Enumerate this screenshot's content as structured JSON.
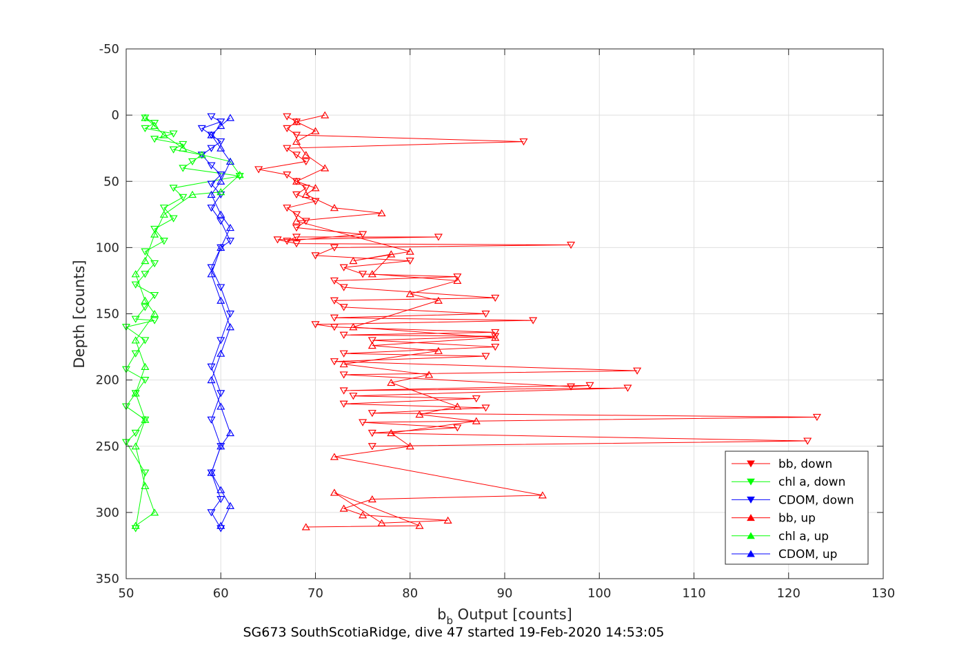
{
  "chart_data": {
    "type": "line",
    "caption": "SG673 SouthScotiaRidge, dive 47 started 19-Feb-2020 14:53:05",
    "xlabel_main": "b",
    "xlabel_sub": "b",
    "xlabel_rest": " Output [counts]",
    "ylabel": "Depth [counts]",
    "xlim": [
      50,
      130
    ],
    "ylim": [
      -50,
      350
    ],
    "y_reversed": true,
    "grid": true,
    "legend_position": "bottom-right",
    "xticks": [
      50,
      60,
      70,
      80,
      90,
      100,
      110,
      120,
      130
    ],
    "yticks": [
      -50,
      0,
      50,
      100,
      150,
      200,
      250,
      300,
      350
    ],
    "series": [
      {
        "name": "bb, down",
        "color": "#ff0000",
        "marker": "triangle-down",
        "x": [
          67,
          68,
          67,
          68,
          92,
          67,
          68,
          69,
          64,
          67,
          68,
          69,
          68,
          70,
          67,
          68,
          69,
          68,
          75,
          67,
          68,
          83,
          66,
          68,
          97,
          72,
          70,
          80,
          73,
          75,
          85,
          72,
          73,
          89,
          72,
          73,
          88,
          72,
          93,
          70,
          72,
          89,
          73,
          89,
          76,
          89,
          73,
          88,
          72,
          104,
          73,
          97,
          99,
          73,
          103,
          74,
          87,
          73,
          88,
          76,
          123,
          75,
          85,
          76,
          122,
          76
        ],
        "y": [
          1,
          5,
          10,
          15,
          20,
          25,
          30,
          35,
          41,
          45,
          50,
          55,
          60,
          65,
          70,
          75,
          80,
          85,
          90,
          95,
          92,
          92,
          94,
          97,
          98,
          100,
          106,
          110,
          115,
          120,
          122,
          125,
          130,
          138,
          140,
          145,
          150,
          153,
          155,
          158,
          160,
          164,
          166,
          167,
          170,
          175,
          180,
          182,
          186,
          193,
          196,
          205,
          204,
          208,
          206,
          212,
          214,
          218,
          221,
          225,
          228,
          232,
          236,
          240,
          246,
          250
        ]
      },
      {
        "name": "chl a, down",
        "color": "#00ff00",
        "marker": "triangle-down",
        "x": [
          52,
          53,
          52,
          55,
          53,
          56,
          55,
          58,
          57,
          56,
          62,
          55,
          56,
          54,
          55,
          53,
          54,
          52,
          53,
          52,
          51,
          53,
          52,
          51,
          53,
          50,
          52,
          51,
          50,
          52,
          51,
          50,
          52,
          51,
          50,
          52,
          51
        ],
        "y": [
          2,
          6,
          10,
          14,
          18,
          22,
          26,
          30,
          35,
          40,
          46,
          55,
          62,
          70,
          78,
          86,
          95,
          103,
          112,
          120,
          128,
          136,
          145,
          154,
          155,
          160,
          170,
          180,
          192,
          200,
          210,
          220,
          230,
          240,
          247,
          270,
          312
        ]
      },
      {
        "name": "CDOM, down",
        "color": "#0000ff",
        "marker": "triangle-down",
        "x": [
          59,
          60,
          58,
          59,
          60,
          59,
          58,
          59,
          60,
          59,
          60,
          59,
          60,
          61,
          60,
          59,
          60,
          61,
          60,
          59,
          60,
          59,
          60,
          59,
          60,
          59,
          60
        ],
        "y": [
          1,
          5,
          10,
          15,
          20,
          25,
          30,
          38,
          45,
          52,
          60,
          70,
          80,
          95,
          100,
          115,
          130,
          150,
          170,
          190,
          210,
          230,
          250,
          270,
          290,
          300,
          312
        ]
      },
      {
        "name": "bb, up",
        "color": "#ff0000",
        "marker": "triangle-up",
        "x": [
          71,
          68,
          70,
          68,
          69,
          71,
          68,
          70,
          69,
          72,
          77,
          68,
          80,
          74,
          78,
          76,
          85,
          80,
          83,
          74,
          89,
          76,
          83,
          73,
          82,
          78,
          85,
          81,
          87,
          78,
          80,
          72,
          94,
          76,
          73,
          75,
          84,
          77,
          72,
          81,
          69
        ],
        "y": [
          0,
          5,
          12,
          20,
          30,
          40,
          50,
          55,
          60,
          70,
          74,
          80,
          103,
          110,
          105,
          120,
          125,
          135,
          140,
          160,
          168,
          174,
          178,
          188,
          196,
          202,
          220,
          226,
          231,
          240,
          250,
          258,
          287,
          290,
          297,
          302,
          306,
          308,
          285,
          310,
          311
        ]
      },
      {
        "name": "chl a, up",
        "color": "#00ff00",
        "marker": "triangle-up",
        "x": [
          52,
          53,
          54,
          56,
          58,
          61,
          62,
          60,
          57,
          54,
          53,
          52,
          51,
          52,
          53,
          51,
          52,
          51,
          52,
          51,
          52,
          53,
          51
        ],
        "y": [
          2,
          8,
          15,
          25,
          30,
          35,
          45,
          58,
          60,
          75,
          90,
          110,
          120,
          140,
          150,
          170,
          190,
          210,
          230,
          250,
          280,
          300,
          310
        ]
      },
      {
        "name": "CDOM, up",
        "color": "#0000ff",
        "marker": "triangle-up",
        "x": [
          61,
          60,
          59,
          60,
          61,
          60,
          59,
          60,
          61,
          60,
          59,
          60,
          61,
          60,
          59,
          60,
          61,
          60,
          59,
          60,
          61,
          60
        ],
        "y": [
          2,
          8,
          15,
          25,
          35,
          50,
          60,
          75,
          85,
          100,
          120,
          140,
          160,
          180,
          200,
          220,
          240,
          250,
          270,
          283,
          295,
          310
        ]
      }
    ]
  }
}
